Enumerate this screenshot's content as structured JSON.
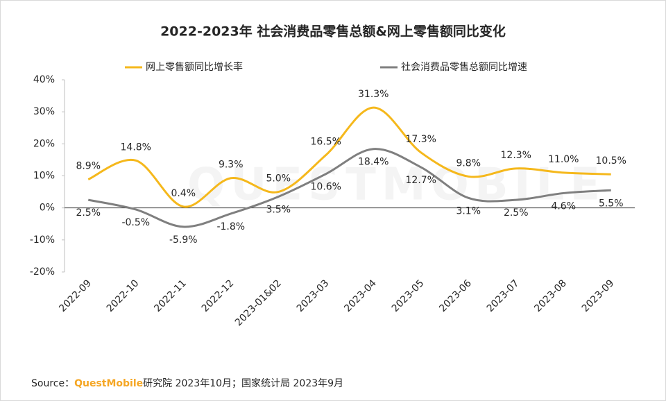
{
  "chart_data": {
    "type": "line",
    "title": "2022-2023年 社会消费品零售总额&网上零售额同比变化",
    "categories": [
      "2022-09",
      "2022-10",
      "2022-11",
      "2022-12",
      "2023-01&02",
      "2023-03",
      "2023-04",
      "2023-05",
      "2023-06",
      "2023-07",
      "2023-08",
      "2023-09"
    ],
    "series": [
      {
        "name": "网上零售额同比增长率",
        "color": "#f5b81c",
        "smooth": true,
        "values": [
          8.9,
          14.8,
          0.4,
          9.3,
          5.0,
          16.5,
          31.3,
          17.3,
          9.8,
          12.3,
          11.0,
          10.5
        ],
        "value_labels": [
          "8.9%",
          "14.8%",
          "0.4%",
          "9.3%",
          "5.0%",
          "16.5%",
          "31.3%",
          "17.3%",
          "9.8%",
          "12.3%",
          "11.0%",
          "10.5%"
        ]
      },
      {
        "name": "社会消费品零售总额同比增速",
        "color": "#7f7f7f",
        "smooth": true,
        "values": [
          2.5,
          -0.5,
          -5.9,
          -1.8,
          3.5,
          10.6,
          18.4,
          12.7,
          3.1,
          2.5,
          4.6,
          5.5
        ],
        "value_labels": [
          "2.5%",
          "-0.5%",
          "-5.9%",
          "-1.8%",
          "3.5%",
          "10.6%",
          "18.4%",
          "12.7%",
          "3.1%",
          "2.5%",
          "4.6%",
          "5.5%"
        ]
      }
    ],
    "ylim": [
      -20,
      40
    ],
    "yticks": [
      {
        "value": -20,
        "label": "-20%"
      },
      {
        "value": -10,
        "label": "-10%"
      },
      {
        "value": 0,
        "label": "0%"
      },
      {
        "value": 10,
        "label": "10%"
      },
      {
        "value": 20,
        "label": "20%"
      },
      {
        "value": 30,
        "label": "30%"
      },
      {
        "value": 40,
        "label": "40%"
      }
    ],
    "legend": "top",
    "watermark": "QUESTMOBILE",
    "source": {
      "prefix": "Source：",
      "brand": "QuestMobile",
      "rest": "研究院 2023年10月；国家统计局 2023年9月"
    }
  }
}
